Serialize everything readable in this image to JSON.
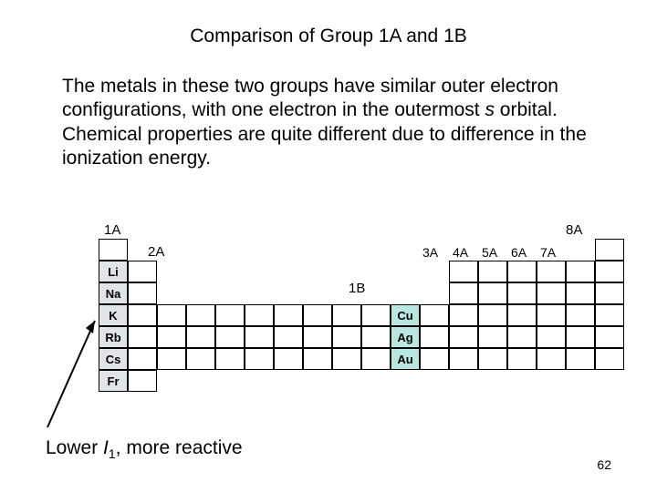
{
  "title": "Comparison of Group 1A and 1B",
  "body": {
    "p1a": "The metals in these two groups have similar outer electron configurations, with one electron in the outermost ",
    "p1b": "s",
    "p1c": " orbital.",
    "p2": "Chemical properties are quite different due to difference in the ionization energy."
  },
  "labels": {
    "g1a": "1A",
    "g2a": "2A",
    "g1b": "1B",
    "g3a": "3A",
    "g4a": "4A",
    "g5a": "5A",
    "g6a": "6A",
    "g7a": "7A",
    "g8a": "8A"
  },
  "elem": {
    "li": "Li",
    "na": "Na",
    "k": "K",
    "rb": "Rb",
    "cs": "Cs",
    "fr": "Fr",
    "cu": "Cu",
    "ag": "Ag",
    "au": "Au"
  },
  "bottom": {
    "a": "Lower ",
    "b": "I",
    "c": "1",
    "d": ", more reactive"
  },
  "page_num": "62",
  "colors": {
    "hl_1a": "#e0e4e8",
    "hl_1b": "#b8e6e0",
    "border": "#000000",
    "bg": "#ffffff"
  },
  "cell": {
    "w": 32,
    "h": 24
  }
}
